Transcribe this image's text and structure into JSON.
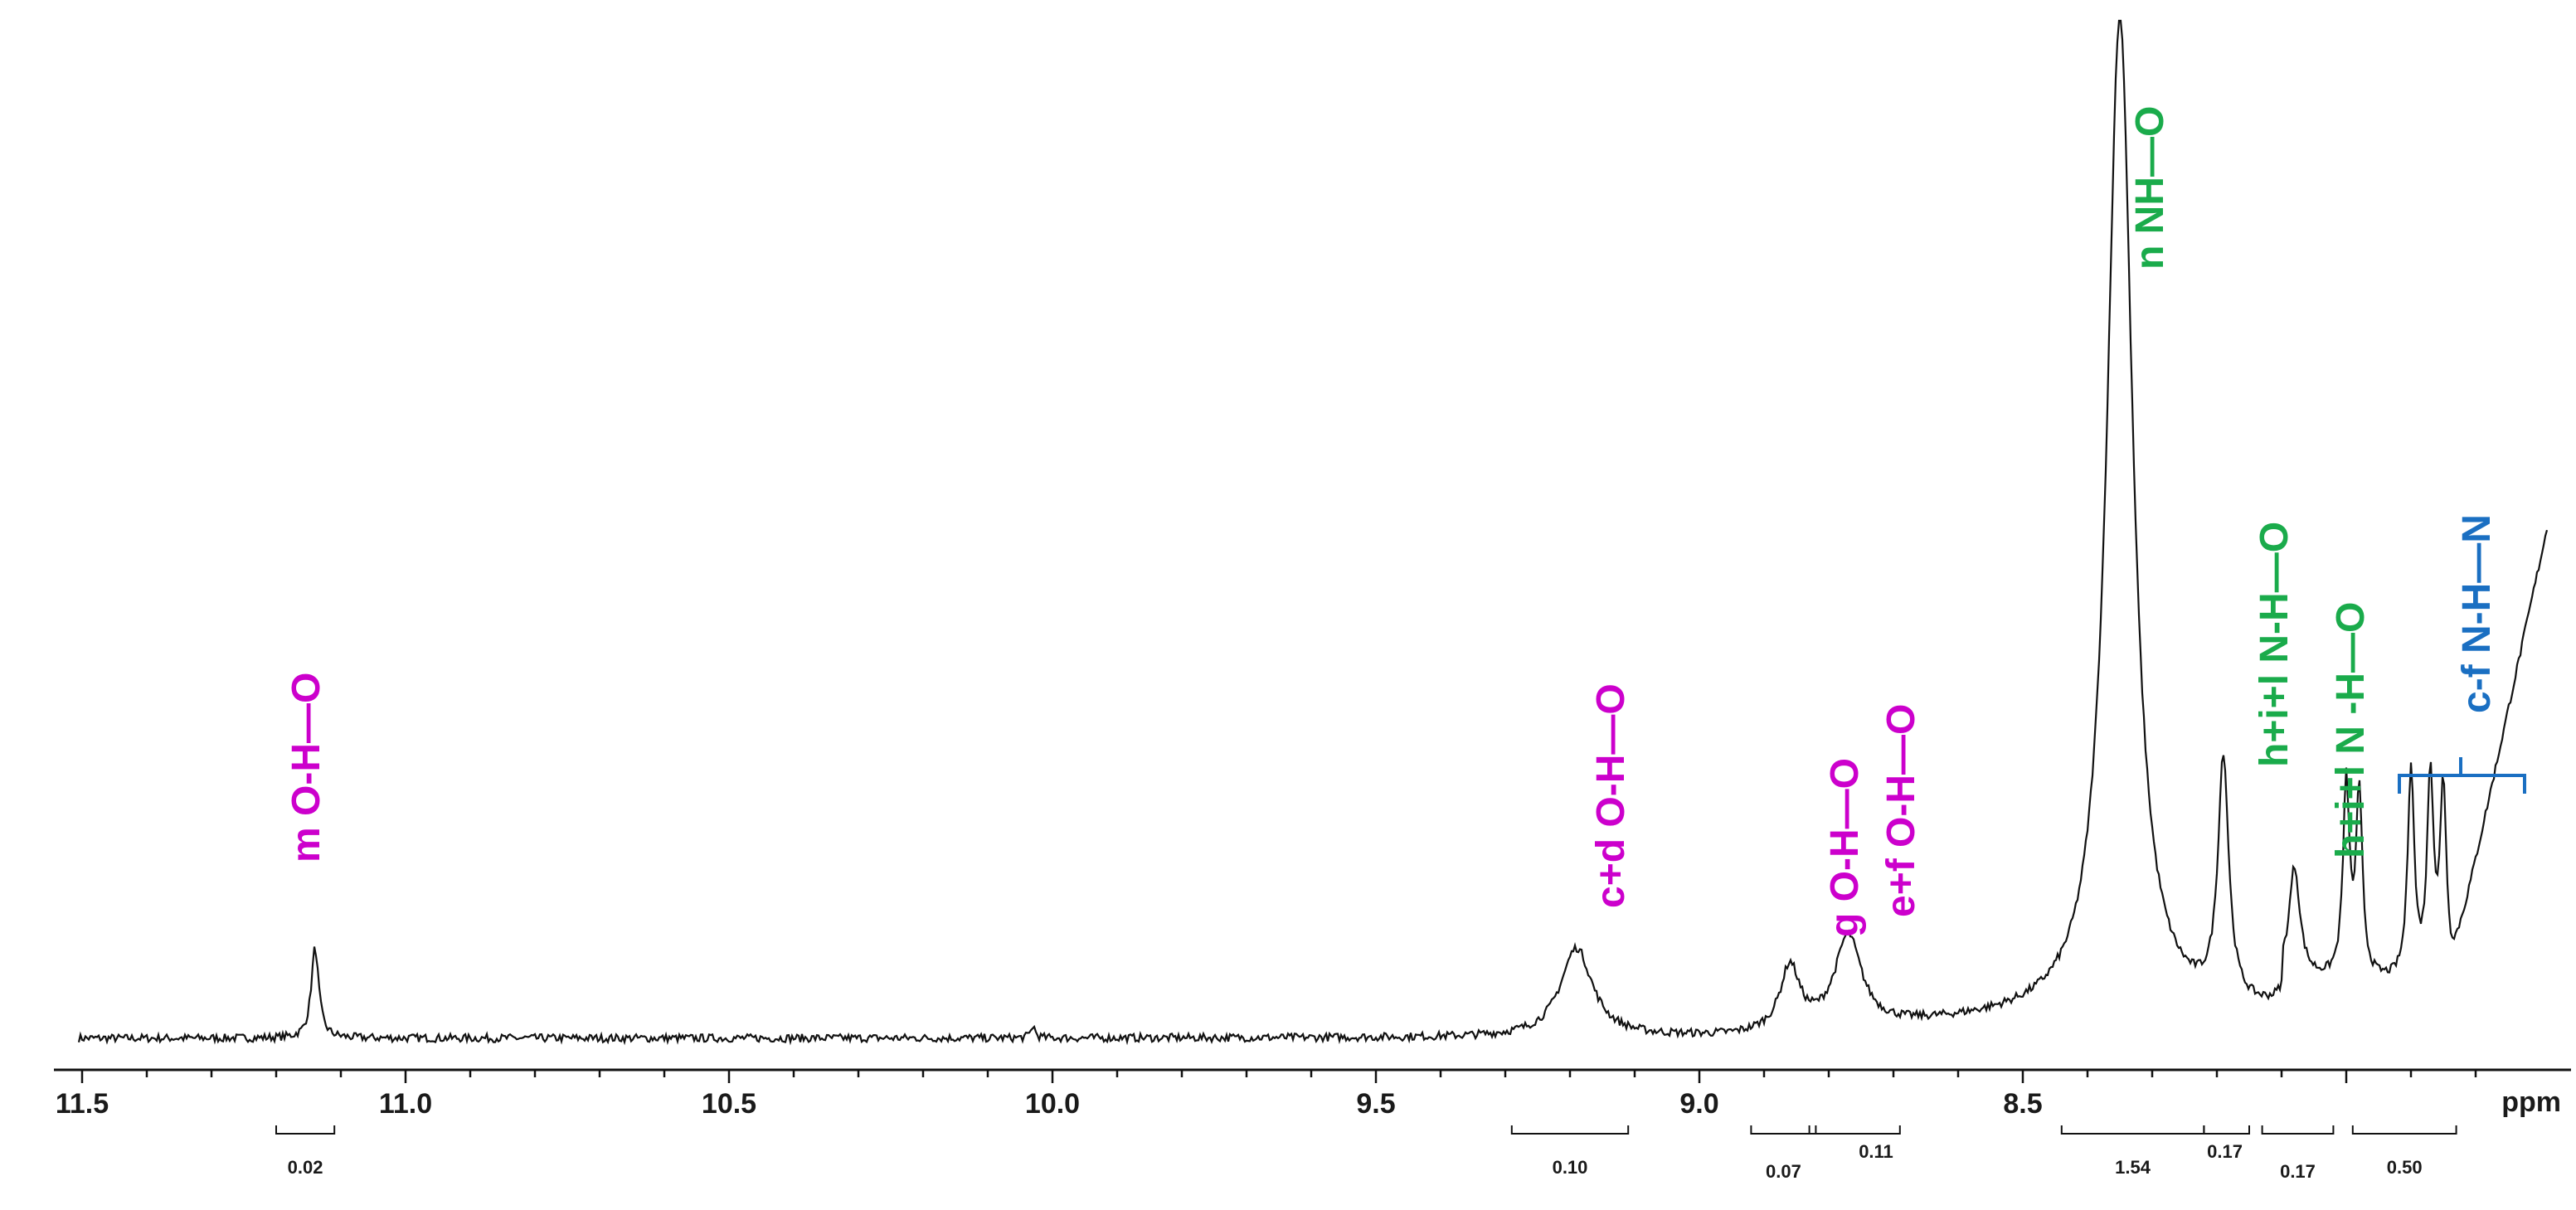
{
  "chart_data": {
    "type": "line",
    "title": "",
    "xlabel": "ppm",
    "ylabel": "",
    "xlim": [
      11.52,
      8.28
    ],
    "x_reversed": true,
    "grid": false,
    "x_ticks": [
      {
        "value": 11.5,
        "label": "11.5"
      },
      {
        "value": 11.0,
        "label": "11.0"
      },
      {
        "value": 10.5,
        "label": "10.5"
      },
      {
        "value": 10.0,
        "label": "10.0"
      },
      {
        "value": 9.5,
        "label": "9.5"
      },
      {
        "value": 9.0,
        "label": "9.0"
      },
      {
        "value": 8.5,
        "label": "8.5"
      }
    ],
    "peaks": [
      {
        "shift": 11.14,
        "intensity": 0.089,
        "width": 0.007
      },
      {
        "shift": 10.03,
        "intensity": 0.012,
        "width": 0.004
      },
      {
        "shift": 9.19,
        "intensity": 0.088,
        "width": 0.03
      },
      {
        "shift": 8.86,
        "intensity": 0.063,
        "width": 0.018
      },
      {
        "shift": 8.77,
        "intensity": 0.09,
        "width": 0.025
      },
      {
        "shift": 8.35,
        "intensity": 0.99,
        "width": 0.024
      },
      {
        "shift": 8.19,
        "intensity": 0.24,
        "width": 0.01
      },
      {
        "shift": 8.08,
        "intensity": 0.108,
        "width": 0.01
      },
      {
        "shift": 8.0,
        "intensity": 0.19,
        "width": 0.006
      },
      {
        "shift": 7.98,
        "intensity": 0.18,
        "width": 0.006
      },
      {
        "shift": 7.9,
        "intensity": 0.21,
        "width": 0.006
      },
      {
        "shift": 7.87,
        "intensity": 0.2,
        "width": 0.006
      },
      {
        "shift": 7.85,
        "intensity": 0.19,
        "width": 0.006
      }
    ],
    "integrals": [
      {
        "from": 11.2,
        "to": 11.11,
        "label": "0.02"
      },
      {
        "from": 9.29,
        "to": 9.11,
        "label": "0.10"
      },
      {
        "from": 8.92,
        "to": 8.82,
        "label": "0.07"
      },
      {
        "from": 8.83,
        "to": 8.69,
        "label": "0.11"
      },
      {
        "from": 8.44,
        "to": 8.22,
        "label": "1.54"
      },
      {
        "from": 8.22,
        "to": 8.15,
        "label": "0.17"
      },
      {
        "from": 8.13,
        "to": 8.02,
        "label": "0.17"
      },
      {
        "from": 7.99,
        "to": 7.83,
        "label": "0.50"
      }
    ],
    "annotations": [
      {
        "text": "m  O-H—O",
        "shift": 11.14,
        "color": "#cc00cc"
      },
      {
        "text": "c+d  O-H—O",
        "shift": 9.19,
        "color": "#cc00cc"
      },
      {
        "text": "g  O-H—O",
        "shift": 8.86,
        "color": "#cc00cc"
      },
      {
        "text": "e+f  O-H—O",
        "shift": 8.77,
        "color": "#cc00cc"
      },
      {
        "text": "n  NH—O",
        "shift": 8.35,
        "color": "#1aab4b"
      },
      {
        "text": "h+i+l   N-H—O",
        "shift": 8.19,
        "color": "#1aab4b"
      },
      {
        "text": "h+i+l  N -H—O",
        "shift": 8.08,
        "color": "#1aab4b"
      },
      {
        "text": "c-f  N-H—N",
        "shift": 7.92,
        "color": "#1a6fc2"
      }
    ],
    "colors": {
      "spectrum": "#111111",
      "hbond_oh": "#cc00cc",
      "hbond_nh_o": "#1aab4b",
      "hbond_nh_n": "#1a6fc2",
      "axis": "#111111"
    }
  }
}
